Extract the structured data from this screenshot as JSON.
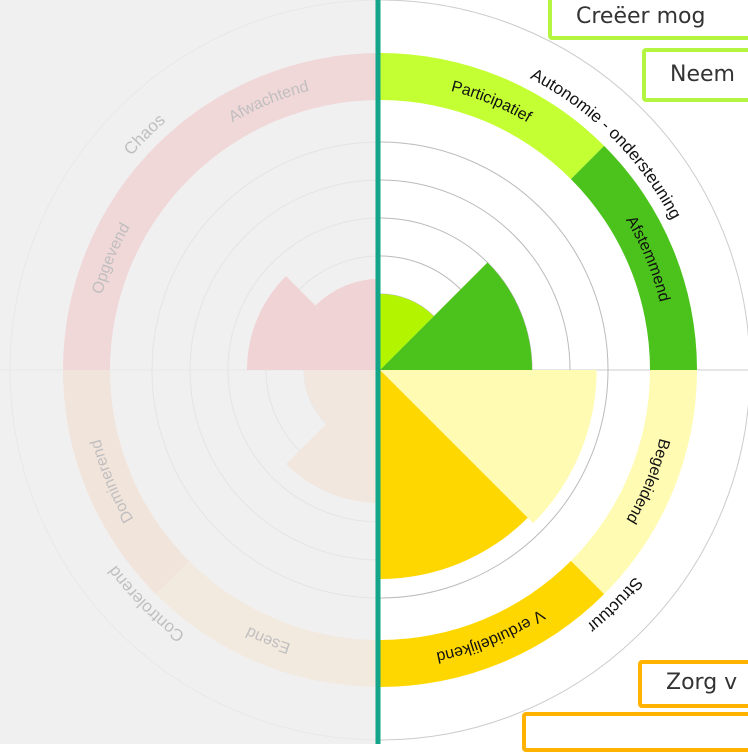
{
  "outer_labels": [
    "Autonomie - ondersteuning",
    "Structuur",
    "Controlerend",
    "Chaos"
  ],
  "sectors": [
    {
      "label": "Participatief",
      "value": 2.0,
      "color": "#b3f500",
      "band_color": "#c3ff33"
    },
    {
      "label": "Afstemmend",
      "value": 4.0,
      "color": "#4cc31c",
      "band_color": "#4cc31c"
    },
    {
      "label": "Begeleidend",
      "value": 5.7,
      "color": "#fffbb3",
      "band_color": "#fffbb3"
    },
    {
      "label": "V erduidelijkend",
      "value": 5.5,
      "color": "#ffd700",
      "band_color": "#ffd700"
    },
    {
      "label": "Esend",
      "value": 3.5,
      "color": "#f5c79a",
      "band_color": "#f5d3a0"
    },
    {
      "label": "Dominerend",
      "value": 2.0,
      "color": "#f5c79a",
      "band_color": "#f2b98f"
    },
    {
      "label": "Opgevend",
      "value": 3.5,
      "color": "#ee6f6f",
      "band_color": "#ee8080"
    },
    {
      "label": "Afwachtend",
      "value": 2.4,
      "color": "#ee6f6f",
      "band_color": "#ee8080"
    }
  ],
  "buttons": [
    "Creëer mog",
    "Neem",
    "Zorg v"
  ]
}
